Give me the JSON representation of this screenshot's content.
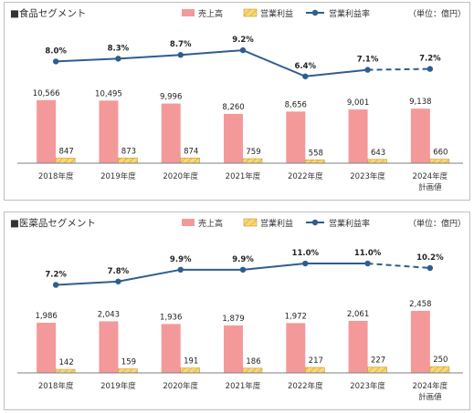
{
  "colors": {
    "sales": "#f4999a",
    "profit_fill": "#f7d87a",
    "profit_stripe": "#e8b23a",
    "profit_edge": "#c99a2e",
    "rate": "#2e5d8f",
    "axis": "#7f7f7f"
  },
  "legend": {
    "sales": "売上高",
    "profit": "営業利益",
    "rate": "営業利益率"
  },
  "chart_data": [
    {
      "type": "bar",
      "title": "■食品セグメント",
      "unit_label": "（単位：億円）",
      "categories": [
        "2018年度",
        "2019年度",
        "2020年度",
        "2021年度",
        "2022年度",
        "2023年度",
        "2024年度"
      ],
      "category_sublabels": [
        "",
        "",
        "",
        "",
        "",
        "",
        "計画値"
      ],
      "series": [
        {
          "name": "売上高",
          "values": [
            10566,
            10495,
            9996,
            8260,
            8656,
            9001,
            9138
          ],
          "labels": [
            "10,566",
            "10,495",
            "9,996",
            "8,260",
            "8,656",
            "9,001",
            "9,138"
          ]
        },
        {
          "name": "営業利益",
          "values": [
            847,
            873,
            874,
            759,
            558,
            643,
            660
          ],
          "labels": [
            "847",
            "873",
            "874",
            "759",
            "558",
            "643",
            "660"
          ]
        },
        {
          "name": "営業利益率",
          "values": [
            8.0,
            8.3,
            8.7,
            9.2,
            6.4,
            7.1,
            7.2
          ],
          "labels": [
            "8.0%",
            "8.3%",
            "8.7%",
            "9.2%",
            "6.4%",
            "7.1%",
            "7.2%"
          ],
          "dashed_from_index": 5
        }
      ]
    },
    {
      "type": "bar",
      "title": "■医薬品セグメント",
      "unit_label": "（単位：億円）",
      "categories": [
        "2018年度",
        "2019年度",
        "2020年度",
        "2021年度",
        "2022年度",
        "2023年度",
        "2024年度"
      ],
      "category_sublabels": [
        "",
        "",
        "",
        "",
        "",
        "",
        "計画値"
      ],
      "series": [
        {
          "name": "売上高",
          "values": [
            1986,
            2043,
            1936,
            1879,
            1972,
            2061,
            2458
          ],
          "labels": [
            "1,986",
            "2,043",
            "1,936",
            "1,879",
            "1,972",
            "2,061",
            "2,458"
          ]
        },
        {
          "name": "営業利益",
          "values": [
            142,
            159,
            191,
            186,
            217,
            227,
            250
          ],
          "labels": [
            "142",
            "159",
            "191",
            "186",
            "217",
            "227",
            "250"
          ]
        },
        {
          "name": "営業利益率",
          "values": [
            7.2,
            7.8,
            9.9,
            9.9,
            11.0,
            11.0,
            10.2
          ],
          "labels": [
            "7.2%",
            "7.8%",
            "9.9%",
            "9.9%",
            "11.0%",
            "11.0%",
            "10.2%"
          ],
          "dashed_from_index": 5
        }
      ]
    }
  ]
}
